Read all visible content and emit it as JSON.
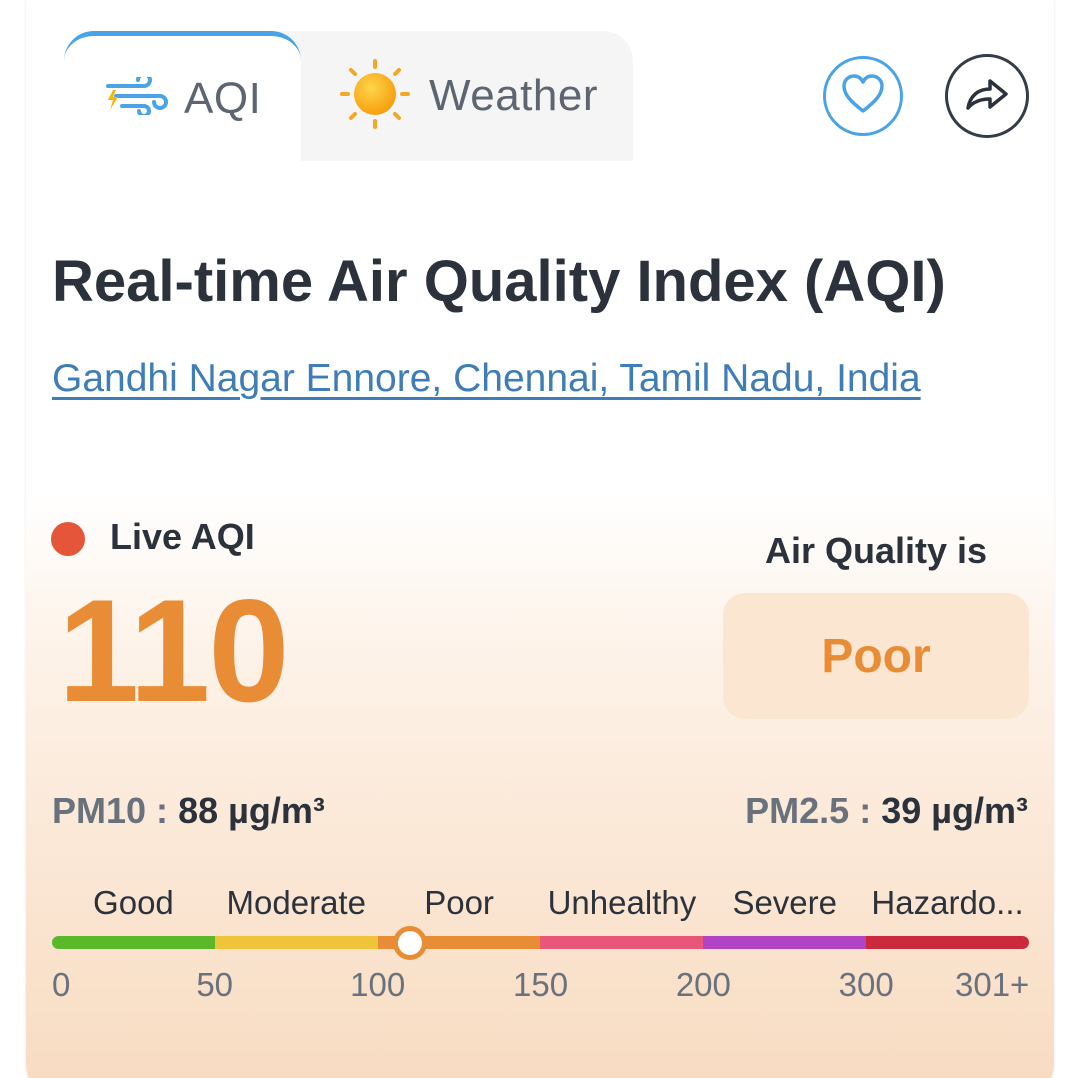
{
  "tabs": [
    {
      "label": "AQI",
      "icon": "wind-icon",
      "active": true
    },
    {
      "label": "Weather",
      "icon": "sun-icon",
      "active": false
    }
  ],
  "heading": "Real-time Air Quality Index (AQI)",
  "location": "Gandhi Nagar Ennore, Chennai, Tamil Nadu, India",
  "live": {
    "label": "Live AQI",
    "value": "110",
    "indicator_color": "#e5553a"
  },
  "quality": {
    "caption": "Air Quality is",
    "status": "Poor",
    "status_color": "#e88d35"
  },
  "pollutants": {
    "pm10_label": "PM10 :",
    "pm10_value": "88 µg/m³",
    "pm25_label": "PM2.5 :",
    "pm25_value": "39 µg/m³"
  },
  "scale": {
    "categories": [
      {
        "label": "Good",
        "color": "#5bb82a"
      },
      {
        "label": "Moderate",
        "color": "#f0c43a"
      },
      {
        "label": "Poor",
        "color": "#e88d35"
      },
      {
        "label": "Unhealthy",
        "color": "#e8577a"
      },
      {
        "label": "Severe",
        "color": "#b044c2"
      },
      {
        "label": "Hazardo...",
        "color": "#cb2a3c"
      }
    ],
    "ticks": [
      "0",
      "50",
      "100",
      "150",
      "200",
      "300",
      "301+"
    ],
    "marker_value": 110
  },
  "actions": {
    "favorite_icon": "heart-icon",
    "share_icon": "share-icon"
  }
}
